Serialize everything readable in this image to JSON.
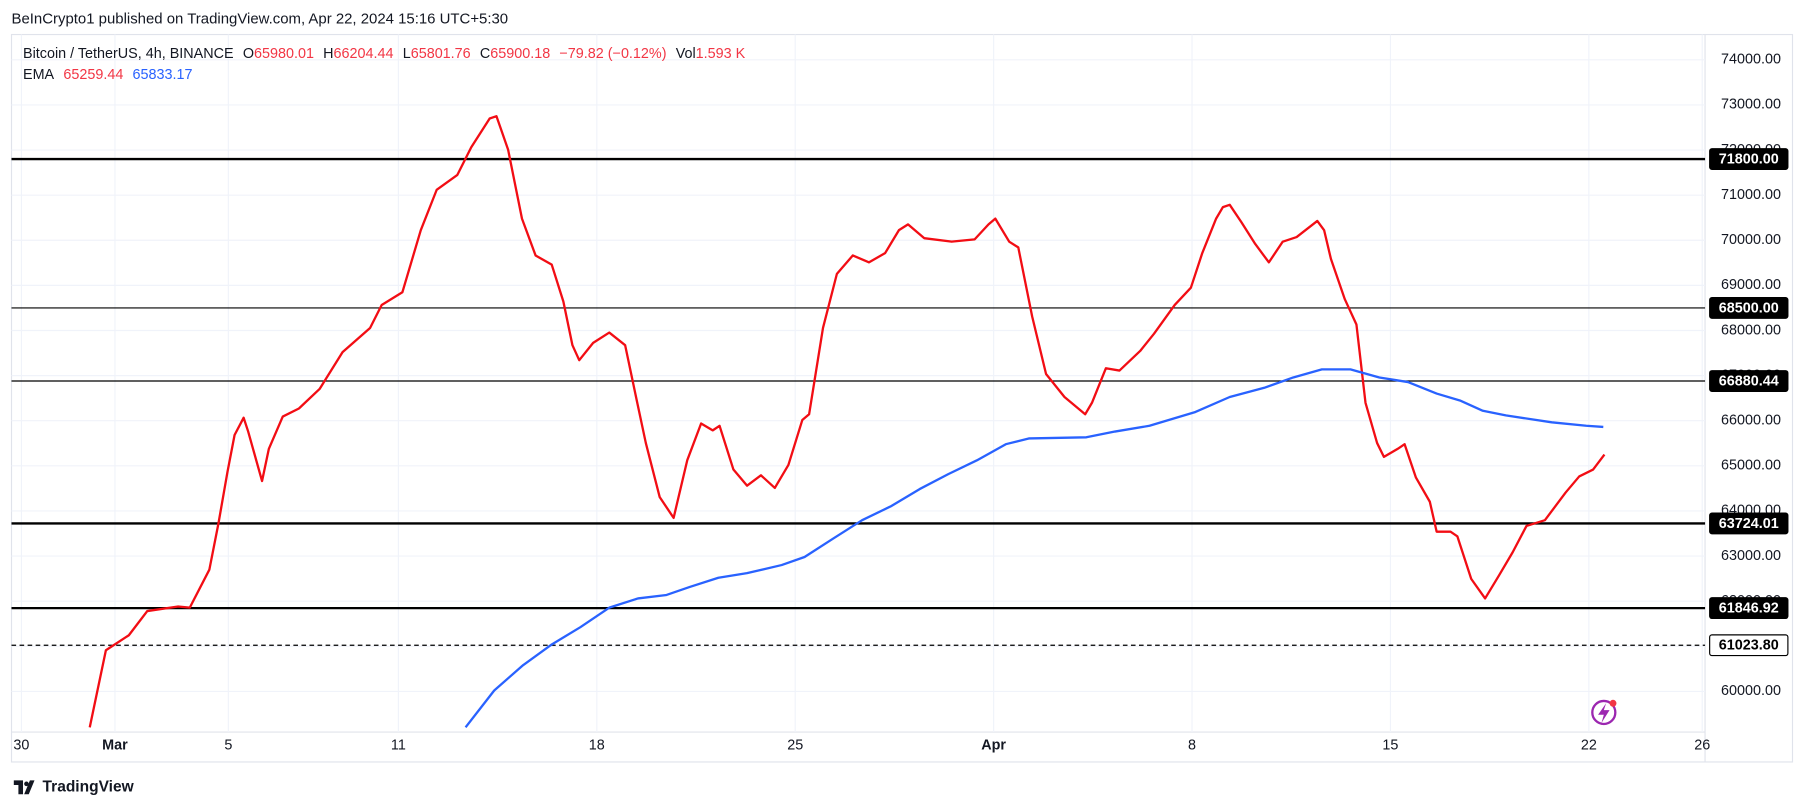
{
  "header": {
    "published": "BeInCrypto1 published on TradingView.com, Apr 22, 2024 15:16 UTC+5:30",
    "symbol": "Bitcoin / TetherUS, 4h, BINANCE",
    "ohlc": [
      {
        "label": "O",
        "value": "65980.01"
      },
      {
        "label": "H",
        "value": "66204.44"
      },
      {
        "label": "L",
        "value": "65801.76"
      },
      {
        "label": "C",
        "value": "65900.18"
      }
    ],
    "change": "−79.82 (−0.12%)",
    "volume": {
      "label": "Vol",
      "value": "1.593 K"
    },
    "indicator": {
      "label": "EMA",
      "values": [
        "65259.44",
        "65833.17"
      ]
    }
  },
  "footer": {
    "brand": "TradingView"
  },
  "chart_data": {
    "type": "line",
    "xlim": [
      -3.65,
      56.1
    ],
    "xticks": [
      {
        "value": -3.3,
        "label": "30"
      },
      {
        "value": 0,
        "label": "Mar"
      },
      {
        "value": 4,
        "label": "5"
      },
      {
        "value": 10,
        "label": "11"
      },
      {
        "value": 17,
        "label": "18"
      },
      {
        "value": 24,
        "label": "25"
      },
      {
        "value": 31,
        "label": "Apr"
      },
      {
        "value": 38,
        "label": "8"
      },
      {
        "value": 45,
        "label": "15"
      },
      {
        "value": 52,
        "label": "22"
      },
      {
        "value": 56,
        "label": "26"
      }
    ],
    "ylim": [
      59100,
      74560
    ],
    "yticks": [
      {
        "value": 60000,
        "label": "60000.00"
      },
      {
        "value": 61000,
        "label": "61000.00"
      },
      {
        "value": 62000,
        "label": "62000.00"
      },
      {
        "value": 63000,
        "label": "63000.00"
      },
      {
        "value": 64000,
        "label": "64000.00"
      },
      {
        "value": 65000,
        "label": "65000.00"
      },
      {
        "value": 66000,
        "label": "66000.00"
      },
      {
        "value": 67000,
        "label": "67000.00"
      },
      {
        "value": 68000,
        "label": "68000.00"
      },
      {
        "value": 69000,
        "label": "69000.00"
      },
      {
        "value": 70000,
        "label": "70000.00"
      },
      {
        "value": 71000,
        "label": "71000.00"
      },
      {
        "value": 72000,
        "label": "72000.00"
      },
      {
        "value": 73000,
        "label": "73000.00"
      },
      {
        "value": 74000,
        "label": "74000.00"
      }
    ],
    "grid": true,
    "series": [
      {
        "color": "#f20d14",
        "x": [
          -0.89,
          -0.32,
          0.49,
          1.14,
          2.23,
          2.64,
          3.33,
          3.65,
          3.97,
          4.22,
          4.54,
          4.7,
          5.19,
          5.43,
          5.92,
          6.49,
          7.22,
          8.03,
          9.0,
          9.41,
          10.14,
          10.79,
          11.35,
          12.08,
          12.57,
          13.22,
          13.46,
          13.87,
          14.36,
          14.84,
          15.41,
          15.82,
          16.14,
          16.38,
          16.87,
          17.44,
          18.0,
          18.41,
          18.73,
          19.22,
          19.71,
          20.19,
          20.68,
          21.09,
          21.33,
          21.82,
          22.3,
          22.79,
          23.28,
          23.76,
          24.25,
          24.49,
          24.98,
          25.47,
          26.03,
          26.6,
          27.17,
          27.66,
          27.98,
          28.55,
          29.52,
          30.33,
          30.82,
          31.06,
          31.55,
          31.87,
          32.36,
          32.85,
          33.5,
          34.23,
          34.47,
          34.96,
          35.44,
          36.17,
          36.66,
          37.39,
          37.96,
          38.36,
          38.85,
          39.09,
          39.33,
          39.74,
          40.23,
          40.71,
          41.2,
          41.69,
          42.42,
          42.66,
          42.9,
          43.39,
          43.8,
          44.12,
          44.53,
          44.77,
          45.26,
          45.5,
          45.9,
          46.39,
          46.63,
          47.12,
          47.36,
          47.85,
          48.34,
          48.83,
          49.31,
          49.8,
          50.45,
          51.18,
          51.66,
          52.15,
          52.55
        ],
        "values": [
          59204,
          60913,
          61245,
          61781,
          61883,
          61857,
          62699,
          63720,
          64867,
          65684,
          66067,
          65760,
          64663,
          65378,
          66092,
          66271,
          66704,
          67520,
          68056,
          68566,
          68847,
          70224,
          71117,
          71449,
          72061,
          72699,
          72750,
          72010,
          70480,
          69663,
          69459,
          68643,
          67674,
          67342,
          67725,
          67954,
          67674,
          66449,
          65505,
          64306,
          63847,
          65122,
          65939,
          65786,
          65888,
          64918,
          64561,
          64791,
          64510,
          65020,
          66015,
          66143,
          68056,
          69255,
          69663,
          69510,
          69714,
          70224,
          70352,
          70046,
          69969,
          70020,
          70352,
          70480,
          69969,
          69842,
          68311,
          67036,
          66526,
          66143,
          66398,
          67163,
          67112,
          67546,
          67929,
          68566,
          68949,
          69714,
          70480,
          70735,
          70786,
          70403,
          69918,
          69510,
          69969,
          70071,
          70429,
          70224,
          69587,
          68694,
          68133,
          66398,
          65505,
          65199,
          65378,
          65480,
          64740,
          64204,
          63541,
          63541,
          63439,
          62495,
          62061,
          62571,
          63082,
          63668,
          63796,
          64408,
          64765,
          64918,
          65250
        ]
      },
      {
        "color": "#2962ff",
        "x": [
          12.37,
          13.38,
          14.4,
          15.41,
          16.42,
          17.44,
          18.45,
          19.46,
          20.28,
          21.29,
          22.3,
          23.52,
          24.33,
          25.34,
          26.36,
          27.37,
          28.39,
          29.4,
          30.41,
          31.43,
          32.24,
          34.27,
          35.28,
          36.5,
          38.12,
          39.33,
          40.55,
          41.57,
          42.58,
          43.59,
          44.61,
          45.62,
          46.63,
          47.45,
          48.26,
          49.07,
          50.69,
          51.91,
          52.51
        ],
        "values": [
          59204,
          60021,
          60582,
          61041,
          61424,
          61857,
          62061,
          62138,
          62316,
          62520,
          62622,
          62801,
          62980,
          63388,
          63796,
          64102,
          64485,
          64816,
          65122,
          65480,
          65607,
          65633,
          65760,
          65888,
          66194,
          66526,
          66730,
          66959,
          67138,
          67138,
          66959,
          66857,
          66602,
          66449,
          66220,
          66118,
          65965,
          65888,
          65862
        ]
      }
    ],
    "levels": [
      {
        "value": 71800,
        "label": "71800.00",
        "style": "solid",
        "thick": true
      },
      {
        "value": 68500,
        "label": "68500.00",
        "style": "solid",
        "thick": false
      },
      {
        "value": 66880.44,
        "label": "66880.44",
        "style": "solid",
        "thick": false
      },
      {
        "value": 63724.01,
        "label": "63724.01",
        "style": "solid",
        "thick": true
      },
      {
        "value": 61846.92,
        "label": "61846.92",
        "style": "solid",
        "thick": true
      },
      {
        "value": 61023.8,
        "label": "61023.80",
        "style": "dashed",
        "thick": false
      }
    ]
  }
}
